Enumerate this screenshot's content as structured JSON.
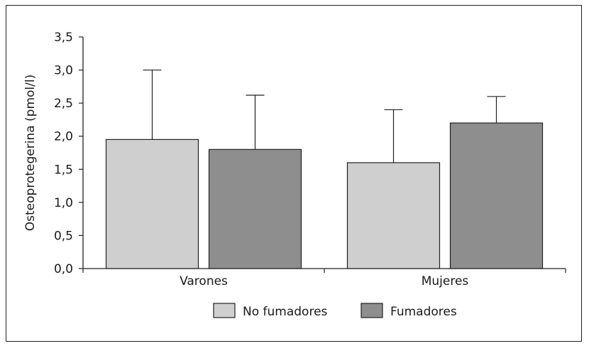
{
  "chart_data": {
    "type": "bar",
    "title": "",
    "xlabel": "",
    "ylabel": "Osteoprotegerina (pmol/l)",
    "categories": [
      "Varones",
      "Mujeres"
    ],
    "series": [
      {
        "name": "No fumadores",
        "color": "#cfcfcf",
        "values": [
          1.95,
          1.6
        ],
        "error_upper": [
          3.0,
          2.4
        ]
      },
      {
        "name": "Fumadores",
        "color": "#8e8e8e",
        "values": [
          1.8,
          2.2
        ],
        "error_upper": [
          2.62,
          2.6
        ]
      }
    ],
    "ylim": [
      0,
      3.5
    ],
    "yticks": [
      "0,0",
      "0,5",
      "1,0",
      "1,5",
      "2,0",
      "2,5",
      "3,0",
      "3,5"
    ],
    "grid": false,
    "legend_position": "bottom"
  }
}
